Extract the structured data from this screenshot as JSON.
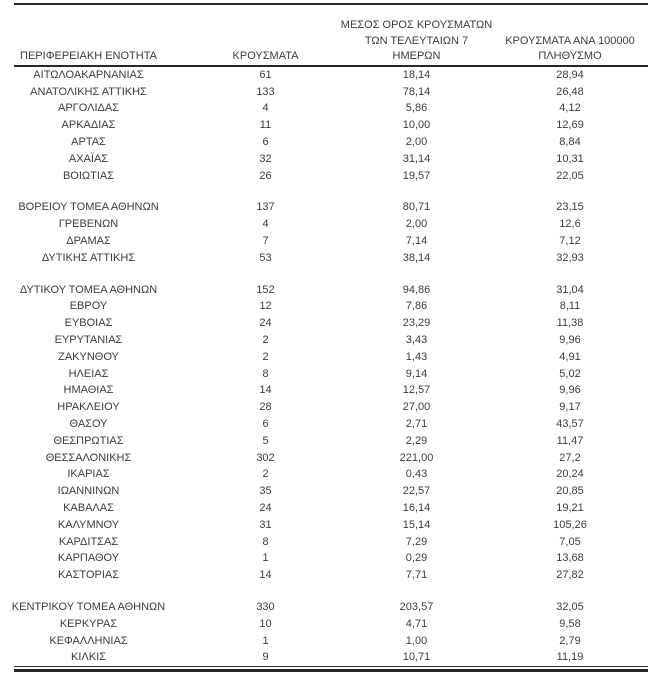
{
  "colors": {
    "text": "#3b3b3b",
    "rule": "#262626",
    "background": "#ffffff"
  },
  "table": {
    "headers": {
      "region": "ΠΕΡΙΦΕΡΕΙΑΚΗ ΕΝΟΤΗΤΑ",
      "cases": "ΚΡΟΥΣΜΑΤΑ",
      "avg7_lines": [
        "ΜΕΣΟΣ ΟΡΟΣ ΚΡΟΥΣΜΑΤΩΝ",
        "ΤΩΝ ΤΕΛΕΥΤΑΙΩΝ 7",
        "ΗΜΕΡΩΝ"
      ],
      "per100k_lines": [
        "ΚΡΟΥΣΜΑΤΑ ΑΝΑ 100000",
        "ΠΛΗΘΥΣΜΟ"
      ]
    },
    "groups": [
      {
        "rows": [
          {
            "region": "ΑΙΤΩΛΟΑΚΑΡΝΑΝΙΑΣ",
            "cases": "61",
            "avg7": "18,14",
            "per100k": "28,94"
          },
          {
            "region": "ΑΝΑΤΟΛΙΚΗΣ ΑΤΤΙΚΗΣ",
            "cases": "133",
            "avg7": "78,14",
            "per100k": "26,48"
          },
          {
            "region": "ΑΡΓΟΛΙΔΑΣ",
            "cases": "4",
            "avg7": "5,86",
            "per100k": "4,12"
          },
          {
            "region": "ΑΡΚΑΔΙΑΣ",
            "cases": "11",
            "avg7": "10,00",
            "per100k": "12,69"
          },
          {
            "region": "ΑΡΤΑΣ",
            "cases": "6",
            "avg7": "2,00",
            "per100k": "8,84"
          },
          {
            "region": "ΑΧΑΪΑΣ",
            "cases": "32",
            "avg7": "31,14",
            "per100k": "10,31"
          },
          {
            "region": "ΒΟΙΩΤΙΑΣ",
            "cases": "26",
            "avg7": "19,57",
            "per100k": "22,05"
          }
        ]
      },
      {
        "rows": [
          {
            "region": "ΒΟΡΕΙΟΥ ΤΟΜΕΑ ΑΘΗΝΩΝ",
            "cases": "137",
            "avg7": "80,71",
            "per100k": "23,15"
          },
          {
            "region": "ΓΡΕΒΕΝΩΝ",
            "cases": "4",
            "avg7": "2,00",
            "per100k": "12,6"
          },
          {
            "region": "ΔΡΑΜΑΣ",
            "cases": "7",
            "avg7": "7,14",
            "per100k": "7,12"
          },
          {
            "region": "ΔΥΤΙΚΗΣ ΑΤΤΙΚΗΣ",
            "cases": "53",
            "avg7": "38,14",
            "per100k": "32,93"
          }
        ]
      },
      {
        "rows": [
          {
            "region": "ΔΥΤΙΚΟΥ ΤΟΜΕΑ ΑΘΗΝΩΝ",
            "cases": "152",
            "avg7": "94,86",
            "per100k": "31,04"
          },
          {
            "region": "ΕΒΡΟΥ",
            "cases": "12",
            "avg7": "7,86",
            "per100k": "8,11"
          },
          {
            "region": "ΕΥΒΟΙΑΣ",
            "cases": "24",
            "avg7": "23,29",
            "per100k": "11,38"
          },
          {
            "region": "ΕΥΡΥΤΑΝΙΑΣ",
            "cases": "2",
            "avg7": "3,43",
            "per100k": "9,96"
          },
          {
            "region": "ΖΑΚΥΝΘΟΥ",
            "cases": "2",
            "avg7": "1,43",
            "per100k": "4,91"
          },
          {
            "region": "ΗΛΕΙΑΣ",
            "cases": "8",
            "avg7": "9,14",
            "per100k": "5,02"
          },
          {
            "region": "ΗΜΑΘΙΑΣ",
            "cases": "14",
            "avg7": "12,57",
            "per100k": "9,96"
          },
          {
            "region": "ΗΡΑΚΛΕΙΟΥ",
            "cases": "28",
            "avg7": "27,00",
            "per100k": "9,17"
          },
          {
            "region": "ΘΑΣΟΥ",
            "cases": "6",
            "avg7": "2,71",
            "per100k": "43,57"
          },
          {
            "region": "ΘΕΣΠΡΩΤΙΑΣ",
            "cases": "5",
            "avg7": "2,29",
            "per100k": "11,47"
          },
          {
            "region": "ΘΕΣΣΑΛΟΝΙΚΗΣ",
            "cases": "302",
            "avg7": "221,00",
            "per100k": "27,2"
          },
          {
            "region": "ΙΚΑΡΙΑΣ",
            "cases": "2",
            "avg7": "0,43",
            "per100k": "20,24"
          },
          {
            "region": "ΙΩΑΝΝΙΝΩΝ",
            "cases": "35",
            "avg7": "22,57",
            "per100k": "20,85"
          },
          {
            "region": "ΚΑΒΑΛΑΣ",
            "cases": "24",
            "avg7": "16,14",
            "per100k": "19,21"
          },
          {
            "region": "ΚΑΛΥΜΝΟΥ",
            "cases": "31",
            "avg7": "15,14",
            "per100k": "105,26"
          },
          {
            "region": "ΚΑΡΔΙΤΣΑΣ",
            "cases": "8",
            "avg7": "7,29",
            "per100k": "7,05"
          },
          {
            "region": "ΚΑΡΠΑΘΟΥ",
            "cases": "1",
            "avg7": "0,29",
            "per100k": "13,68"
          },
          {
            "region": "ΚΑΣΤΟΡΙΑΣ",
            "cases": "14",
            "avg7": "7,71",
            "per100k": "27,82"
          }
        ]
      },
      {
        "rows": [
          {
            "region": "ΚΕΝΤΡΙΚΟΥ ΤΟΜΕΑ ΑΘΗΝΩΝ",
            "cases": "330",
            "avg7": "203,57",
            "per100k": "32,05"
          },
          {
            "region": "ΚΕΡΚΥΡΑΣ",
            "cases": "10",
            "avg7": "4,71",
            "per100k": "9,58"
          },
          {
            "region": "ΚΕΦΑΛΛΗΝΙΑΣ",
            "cases": "1",
            "avg7": "1,00",
            "per100k": "2,79"
          },
          {
            "region": "ΚΙΛΚΙΣ",
            "cases": "9",
            "avg7": "10,71",
            "per100k": "11,19"
          }
        ]
      }
    ]
  }
}
